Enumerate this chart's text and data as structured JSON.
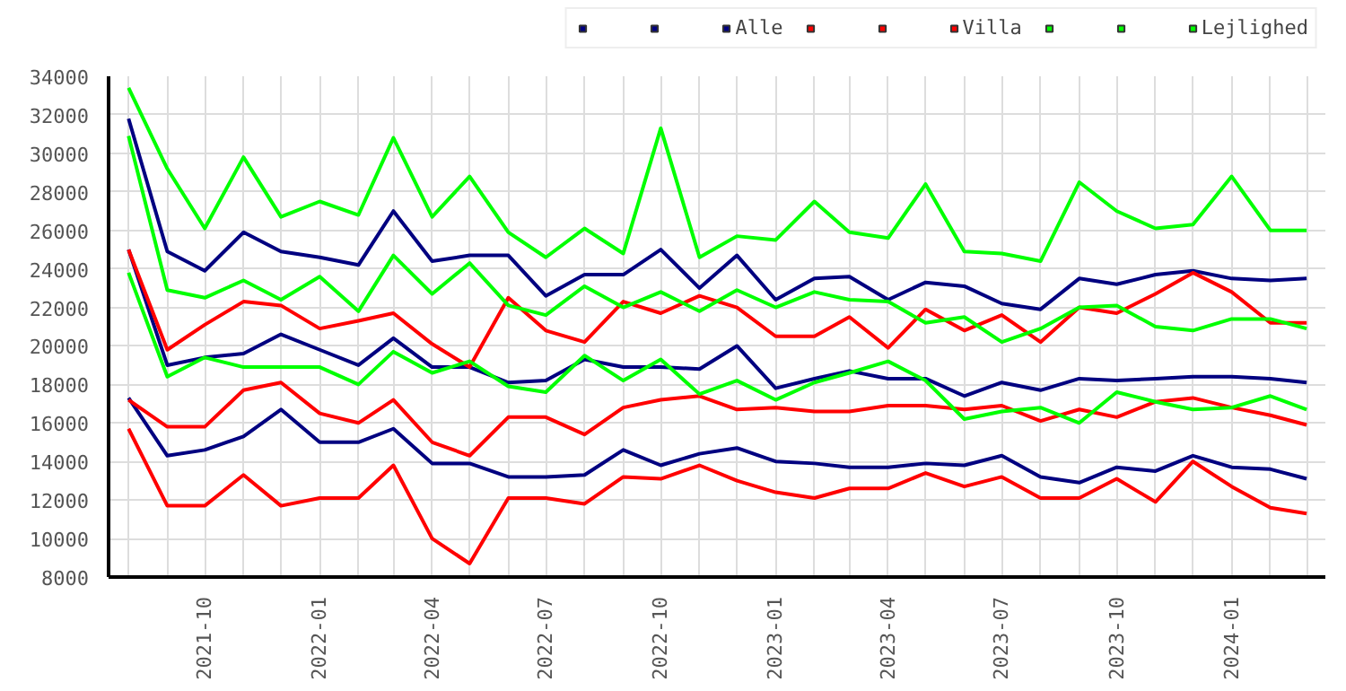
{
  "chart_data": {
    "type": "line",
    "x": [
      "2021-08",
      "2021-09",
      "2021-10",
      "2021-11",
      "2021-12",
      "2022-01",
      "2022-02",
      "2022-03",
      "2022-04",
      "2022-05",
      "2022-06",
      "2022-07",
      "2022-08",
      "2022-09",
      "2022-10",
      "2022-11",
      "2022-12",
      "2023-01",
      "2023-02",
      "2023-03",
      "2023-04",
      "2023-05",
      "2023-06",
      "2023-07",
      "2023-08",
      "2023-09",
      "2023-10",
      "2023-11",
      "2023-12",
      "2024-01",
      "2024-02",
      "2024-03"
    ],
    "series": [
      {
        "color": "#000080",
        "values": [
          31800,
          24900,
          23900,
          25900,
          24900,
          24600,
          24200,
          27000,
          24400,
          24700,
          24700,
          22600,
          23700,
          23700,
          25000,
          23000,
          24700,
          22400,
          23500,
          23600,
          22400,
          23300,
          23100,
          22200,
          21900,
          23500,
          23200,
          23700,
          23900,
          23500,
          23400,
          23500
        ]
      },
      {
        "color": "#000080",
        "values": [
          25000,
          19000,
          19400,
          19600,
          20600,
          19800,
          19000,
          20400,
          18900,
          18900,
          18100,
          18200,
          19300,
          18900,
          18900,
          18800,
          20000,
          17800,
          18300,
          18700,
          18300,
          18300,
          17400,
          18100,
          17700,
          18300,
          18200,
          18300,
          18400,
          18400,
          18300,
          18100
        ]
      },
      {
        "name": "Alle",
        "color": "#000080",
        "values": [
          17300,
          14300,
          14600,
          15300,
          16700,
          15000,
          15000,
          15700,
          13900,
          13900,
          13200,
          13200,
          13300,
          14600,
          13800,
          14400,
          14700,
          14000,
          13900,
          13700,
          13700,
          13900,
          13800,
          14300,
          13200,
          12900,
          13700,
          13500,
          14300,
          13700,
          13600,
          13100
        ]
      },
      {
        "color": "#ff0000",
        "values": [
          25000,
          19800,
          21100,
          22300,
          22100,
          20900,
          21300,
          21700,
          20100,
          18900,
          22500,
          20800,
          20200,
          22300,
          21700,
          22600,
          22000,
          20500,
          20500,
          21500,
          19900,
          21900,
          20800,
          21600,
          20200,
          22000,
          21700,
          22700,
          23800,
          22800,
          21200,
          21200
        ]
      },
      {
        "color": "#ff0000",
        "values": [
          17200,
          15800,
          15800,
          17700,
          18100,
          16500,
          16000,
          17200,
          15000,
          14300,
          16300,
          16300,
          15400,
          16800,
          17200,
          17400,
          16700,
          16800,
          16600,
          16600,
          16900,
          16900,
          16700,
          16900,
          16100,
          16700,
          16300,
          17100,
          17300,
          16800,
          16400,
          15900
        ]
      },
      {
        "name": "Villa",
        "color": "#ff0000",
        "values": [
          15700,
          11700,
          11700,
          13300,
          11700,
          12100,
          12100,
          13800,
          10000,
          8700,
          12100,
          12100,
          11800,
          13200,
          13100,
          13800,
          13000,
          12400,
          12100,
          12600,
          12600,
          13400,
          12700,
          13200,
          12100,
          12100,
          13100,
          11900,
          14000,
          12700,
          11600,
          11300
        ]
      },
      {
        "color": "#00ff00",
        "values": [
          33400,
          29200,
          26100,
          29800,
          26700,
          27500,
          26800,
          30800,
          26700,
          28800,
          25900,
          24600,
          26100,
          24800,
          31300,
          24600,
          25700,
          25500,
          27500,
          25900,
          25600,
          28400,
          24900,
          24800,
          24400,
          28500,
          27000,
          26100,
          26300,
          28800,
          26000,
          26000
        ]
      },
      {
        "color": "#00ff00",
        "values": [
          30900,
          22900,
          22500,
          23400,
          22400,
          23600,
          21800,
          24700,
          22700,
          24300,
          22100,
          21600,
          23100,
          22000,
          22800,
          21800,
          22900,
          22000,
          22800,
          22400,
          22300,
          21200,
          21500,
          20200,
          20900,
          22000,
          22100,
          21000,
          20800,
          21400,
          21400,
          20900
        ]
      },
      {
        "name": "Lejlighed",
        "color": "#00ff00",
        "values": [
          23800,
          18400,
          19400,
          18900,
          18900,
          18900,
          18000,
          19700,
          18600,
          19200,
          17900,
          17600,
          19500,
          18200,
          19300,
          17500,
          18200,
          17200,
          18100,
          18600,
          19200,
          18200,
          16200,
          16600,
          16800,
          16000,
          17600,
          17100,
          16700,
          16800,
          17400,
          16700
        ]
      }
    ],
    "xlim": [
      "2021-07-16",
      "2024-03-16"
    ],
    "xticks": [
      {
        "value": "2021-08",
        "label": null
      },
      {
        "value": "2021-09",
        "label": null
      },
      "2021-10",
      {
        "value": "2021-11",
        "label": null
      },
      {
        "value": "2021-12",
        "label": null
      },
      "2022-01",
      {
        "value": "2022-02",
        "label": null
      },
      {
        "value": "2022-03",
        "label": null
      },
      "2022-04",
      {
        "value": "2022-05",
        "label": null
      },
      {
        "value": "2022-06",
        "label": null
      },
      "2022-07",
      {
        "value": "2022-08",
        "label": null
      },
      {
        "value": "2022-09",
        "label": null
      },
      "2022-10",
      {
        "value": "2022-11",
        "label": null
      },
      {
        "value": "2022-12",
        "label": null
      },
      "2023-01",
      {
        "value": "2023-02",
        "label": null
      },
      {
        "value": "2023-03",
        "label": null
      },
      "2023-04",
      {
        "value": "2023-05",
        "label": null
      },
      {
        "value": "2023-06",
        "label": null
      },
      "2023-07",
      {
        "value": "2023-08",
        "label": null
      },
      {
        "value": "2023-09",
        "label": null
      },
      "2023-10",
      {
        "value": "2023-11",
        "label": null
      },
      {
        "value": "2023-12",
        "label": null
      },
      "2024-01",
      {
        "value": "2024-02",
        "label": null
      },
      {
        "value": "2024-03",
        "label": null
      }
    ],
    "ylim": [
      8000,
      34000
    ],
    "yticks": [
      8000,
      10000,
      12000,
      14000,
      16000,
      18000,
      20000,
      22000,
      24000,
      26000,
      28000,
      30000,
      32000,
      34000
    ],
    "grid": true,
    "legend": "top right",
    "marker": "none",
    "line_style": "solid"
  }
}
